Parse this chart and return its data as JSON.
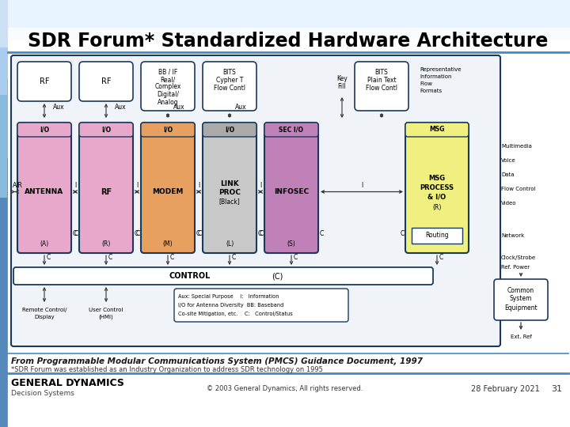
{
  "title": "SDR Forum* Standardized Hardware Architecture",
  "background_color": "#ffffff",
  "title_color": "#000000",
  "footer_text1": "From Programmable Modular Communications System (PMCS) Guidance Document, 1997",
  "footer_text2": "*SDR Forum was established as an Industry Organization to address SDR technology on 1995",
  "copyright": "© 2003 General Dynamics, All rights reserved.",
  "date": "28 February 2021",
  "page": "31",
  "company1": "GENERAL DYNAMICS",
  "company2": "Decision Systems",
  "box_outline": "#1a3a5c",
  "antenna_color": "#e8a8cc",
  "rf_mod_color": "#e8a8cc",
  "modem_color": "#e8a060",
  "link_proc_color": "#c8c8c8",
  "infosec_color": "#c080b8",
  "msg_proc_color": "#f0f080",
  "header_line_color": "#4488cc",
  "accent_color": "#4488cc"
}
